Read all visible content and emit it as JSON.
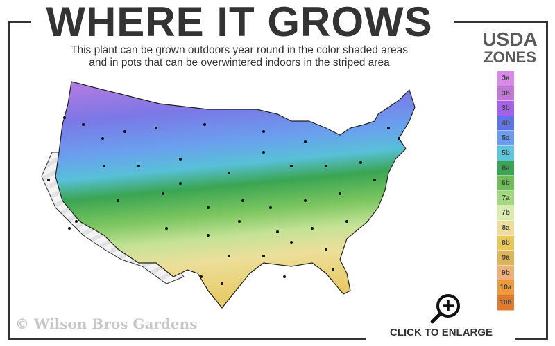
{
  "title": "WHERE IT GROWS",
  "subtitle_line1": "This plant can be grown outdoors year round in the color shaded areas",
  "subtitle_line2": "and in pots that can be overwintered indoors in the striped area",
  "legend": {
    "title1": "USDA",
    "title2": "ZONES",
    "zones": [
      {
        "label": "3a",
        "color": "#d98ae6"
      },
      {
        "label": "3b",
        "color": "#c277d6"
      },
      {
        "label": "3b",
        "color": "#a462ec"
      },
      {
        "label": "4b",
        "color": "#5f74e6"
      },
      {
        "label": "5a",
        "color": "#6b9cf0"
      },
      {
        "label": "5b",
        "color": "#5bc6dc"
      },
      {
        "label": "6a",
        "color": "#3aa552"
      },
      {
        "label": "6b",
        "color": "#6ebd58"
      },
      {
        "label": "7a",
        "color": "#a6d882"
      },
      {
        "label": "7b",
        "color": "#dcebb0"
      },
      {
        "label": "8a",
        "color": "#ecdf9a"
      },
      {
        "label": "8b",
        "color": "#e8c85a"
      },
      {
        "label": "9a",
        "color": "#dcb55a"
      },
      {
        "label": "9b",
        "color": "#f0b07a"
      },
      {
        "label": "10a",
        "color": "#ec9a3a"
      },
      {
        "label": "10b",
        "color": "#e07a2e"
      }
    ]
  },
  "watermark": "© Wilson Bros Gardens",
  "enlarge_label": "CLICK TO ENLARGE",
  "icons": {
    "enlarge": "magnifier-plus-icon"
  }
}
